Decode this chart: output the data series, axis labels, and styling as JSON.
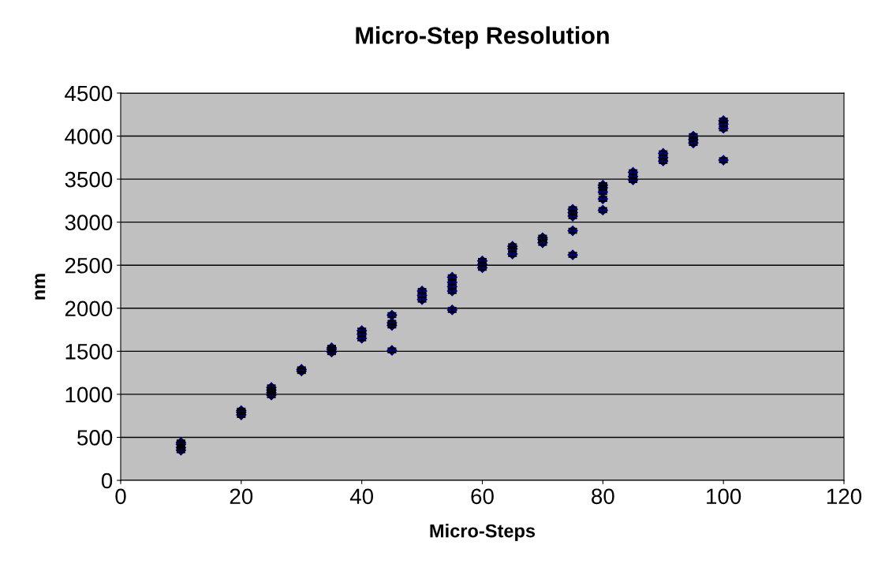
{
  "chart_data": {
    "type": "scatter",
    "title": "Micro-Step Resolution",
    "xlabel": "Micro-Steps",
    "ylabel": "nm",
    "series": [
      {
        "color": "#000080",
        "x": [
          10,
          10,
          10,
          10,
          20,
          20,
          20,
          25,
          25,
          25,
          25,
          30,
          30,
          35,
          35,
          35,
          40,
          40,
          40,
          45,
          45,
          45,
          45,
          50,
          50,
          50,
          55,
          55,
          55,
          55,
          55,
          60,
          60,
          60,
          65,
          65,
          65,
          70,
          70,
          70,
          75,
          75,
          75,
          75,
          75,
          80,
          80,
          80,
          80,
          80,
          85,
          85,
          85,
          90,
          90,
          90,
          95,
          95,
          95,
          100,
          100,
          100,
          100
        ],
        "values": [
          350,
          380,
          420,
          440,
          760,
          790,
          810,
          990,
          1020,
          1050,
          1080,
          1270,
          1290,
          1490,
          1520,
          1540,
          1650,
          1700,
          1740,
          1510,
          1800,
          1830,
          1920,
          2100,
          2150,
          2200,
          1980,
          2200,
          2250,
          2300,
          2360,
          2470,
          2510,
          2550,
          2630,
          2690,
          2720,
          2760,
          2800,
          2820,
          2620,
          2900,
          3070,
          3110,
          3150,
          3140,
          3270,
          3350,
          3400,
          3430,
          3490,
          3530,
          3580,
          3710,
          3750,
          3800,
          3920,
          3960,
          4000,
          3720,
          4090,
          4140,
          4180
        ],
        "errors": [
          25,
          25,
          25,
          25,
          25,
          25,
          25,
          25,
          25,
          25,
          25,
          25,
          25,
          25,
          25,
          25,
          25,
          25,
          25,
          25,
          25,
          25,
          25,
          25,
          25,
          25,
          25,
          25,
          25,
          25,
          25,
          25,
          25,
          25,
          25,
          25,
          25,
          25,
          25,
          25,
          25,
          25,
          25,
          25,
          25,
          25,
          25,
          25,
          25,
          25,
          25,
          25,
          25,
          25,
          25,
          25,
          25,
          25,
          25,
          25,
          25,
          25,
          25
        ]
      }
    ],
    "xlim": [
      0,
      120
    ],
    "xticks": [
      0,
      20,
      40,
      60,
      80,
      100,
      120
    ],
    "ylim": [
      0,
      4500
    ],
    "yticks": [
      0,
      500,
      1000,
      1500,
      2000,
      2500,
      3000,
      3500,
      4000,
      4500
    ],
    "grid": "y",
    "marker": "diamond",
    "legend": false
  }
}
